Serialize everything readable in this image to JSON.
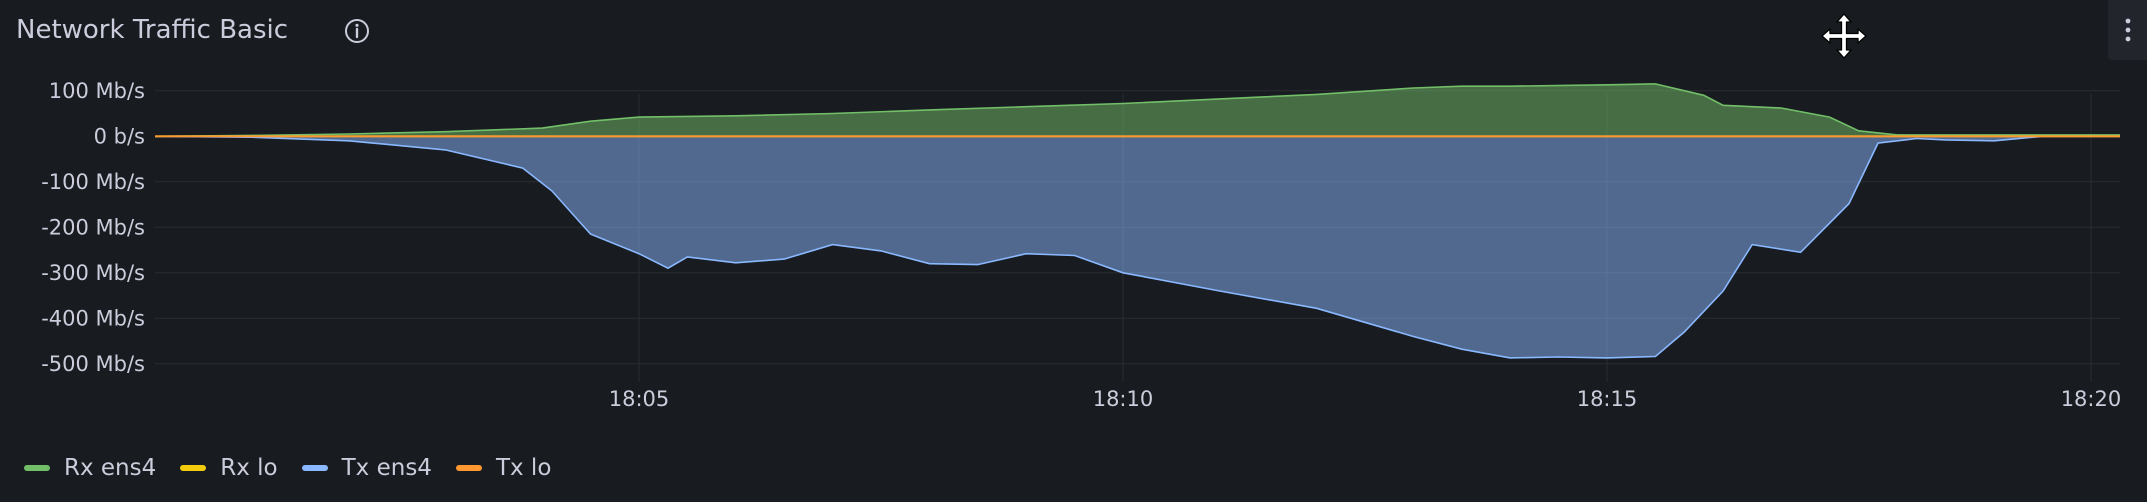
{
  "panel": {
    "title": "Network Traffic Basic"
  },
  "icons": {
    "info": "info-circle-icon",
    "move": "move-arrows-icon",
    "menu": "vertical-dots-menu-icon"
  },
  "colors": {
    "background": "#181b1f",
    "grid": "#2a2d33",
    "rx_ens4": "#73bf69",
    "rx_lo": "#f2cc0c",
    "tx_ens4": "#8ab8ff",
    "tx_lo": "#ff9830"
  },
  "legend": [
    {
      "label": "Rx ens4",
      "color": "#73bf69"
    },
    {
      "label": "Rx lo",
      "color": "#f2cc0c"
    },
    {
      "label": "Tx ens4",
      "color": "#8ab8ff"
    },
    {
      "label": "Tx lo",
      "color": "#ff9830"
    }
  ],
  "chart_data": {
    "type": "area",
    "title": "Network Traffic Basic",
    "y_tick_labels": [
      "100 Mb/s",
      "0 b/s",
      "-100 Mb/s",
      "-200 Mb/s",
      "-300 Mb/s",
      "-400 Mb/s",
      "-500 Mb/s"
    ],
    "y_ticks": [
      100,
      0,
      -100,
      -200,
      -300,
      -400,
      -500
    ],
    "ylim": [
      -540,
      150
    ],
    "x_tick_labels": [
      "18:05",
      "18:10",
      "18:15",
      "18:20"
    ],
    "x_ticks": [
      5,
      10,
      15,
      20
    ],
    "xlim": [
      0.0,
      20.3
    ],
    "x_units": "minutes after 18:00",
    "grid": true,
    "legend_position": "bottom-left",
    "series": [
      {
        "name": "Rx ens4",
        "color": "#73bf69",
        "fill": true,
        "points": [
          [
            0.0,
            0
          ],
          [
            1.0,
            2
          ],
          [
            2.0,
            5
          ],
          [
            3.0,
            10
          ],
          [
            4.0,
            18
          ],
          [
            4.5,
            33
          ],
          [
            5.0,
            42
          ],
          [
            6.0,
            45
          ],
          [
            7.0,
            50
          ],
          [
            8.0,
            58
          ],
          [
            9.0,
            65
          ],
          [
            10.0,
            72
          ],
          [
            11.0,
            82
          ],
          [
            12.0,
            92
          ],
          [
            13.0,
            106
          ],
          [
            13.5,
            110
          ],
          [
            14.0,
            110
          ],
          [
            15.0,
            113
          ],
          [
            15.5,
            115
          ],
          [
            16.0,
            90
          ],
          [
            16.2,
            68
          ],
          [
            16.8,
            62
          ],
          [
            17.3,
            42
          ],
          [
            17.6,
            12
          ],
          [
            18.0,
            3
          ],
          [
            20.3,
            3
          ]
        ]
      },
      {
        "name": "Rx lo",
        "color": "#f2cc0c",
        "fill": false,
        "points": [
          [
            0.0,
            0
          ],
          [
            20.3,
            0
          ]
        ]
      },
      {
        "name": "Tx ens4",
        "color": "#8ab8ff",
        "fill": true,
        "points": [
          [
            0.0,
            0
          ],
          [
            1.0,
            -2
          ],
          [
            2.0,
            -10
          ],
          [
            3.0,
            -30
          ],
          [
            3.8,
            -70
          ],
          [
            4.1,
            -120
          ],
          [
            4.5,
            -215
          ],
          [
            5.0,
            -258
          ],
          [
            5.3,
            -290
          ],
          [
            5.5,
            -265
          ],
          [
            6.0,
            -278
          ],
          [
            6.5,
            -270
          ],
          [
            7.0,
            -238
          ],
          [
            7.5,
            -252
          ],
          [
            8.0,
            -280
          ],
          [
            8.5,
            -282
          ],
          [
            9.0,
            -258
          ],
          [
            9.5,
            -262
          ],
          [
            10.0,
            -300
          ],
          [
            11.0,
            -340
          ],
          [
            12.0,
            -378
          ],
          [
            13.0,
            -440
          ],
          [
            13.5,
            -468
          ],
          [
            14.0,
            -487
          ],
          [
            14.5,
            -485
          ],
          [
            15.0,
            -487
          ],
          [
            15.5,
            -484
          ],
          [
            15.8,
            -430
          ],
          [
            16.2,
            -340
          ],
          [
            16.5,
            -238
          ],
          [
            17.0,
            -255
          ],
          [
            17.5,
            -148
          ],
          [
            17.8,
            -15
          ],
          [
            18.2,
            -5
          ],
          [
            18.5,
            -8
          ],
          [
            19.0,
            -10
          ],
          [
            19.5,
            0
          ],
          [
            20.3,
            0
          ]
        ]
      },
      {
        "name": "Tx lo",
        "color": "#ff9830",
        "fill": false,
        "points": [
          [
            0.0,
            0
          ],
          [
            20.3,
            0
          ]
        ]
      }
    ]
  }
}
